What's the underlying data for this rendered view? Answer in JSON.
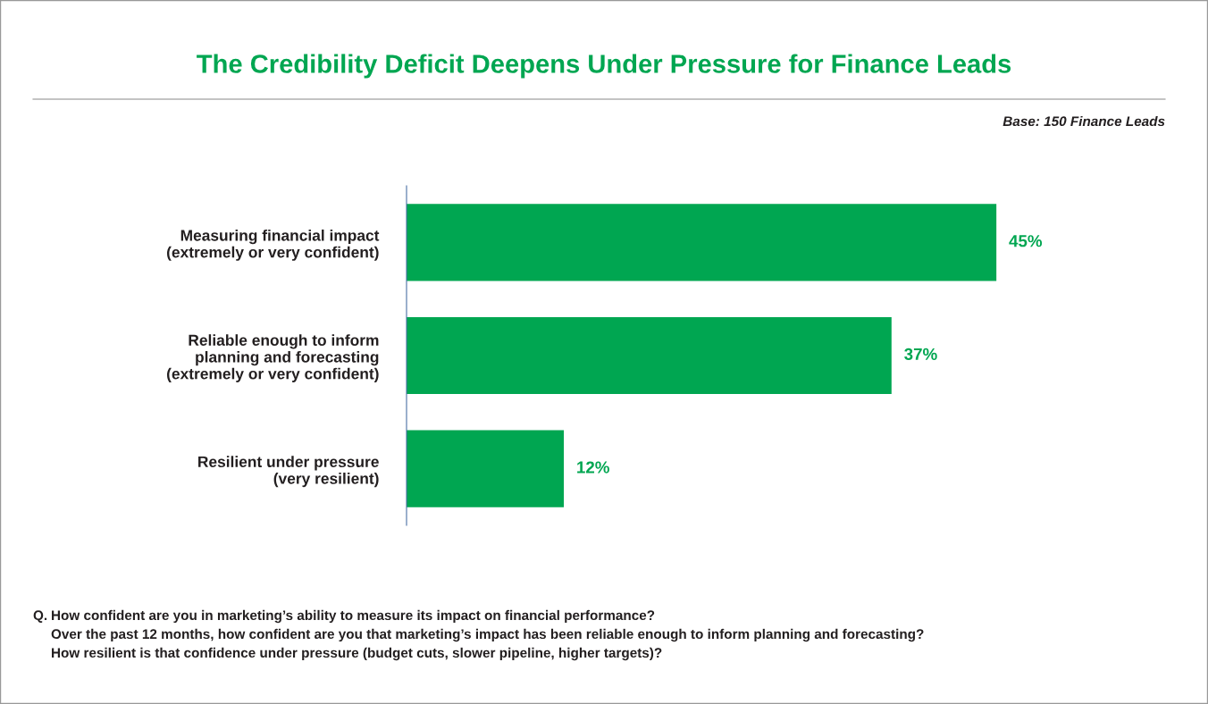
{
  "chart_data": {
    "type": "bar",
    "orientation": "horizontal",
    "title": "The Credibility Deficit Deepens Under Pressure for Finance Leads",
    "categories": [
      "Measuring financial impact\n(extremely or very confident)",
      "Reliable enough to inform\nplanning and forecasting\n(extremely or very confident)",
      "Resilient under pressure\n(very resilient)"
    ],
    "values": [
      45,
      37,
      12
    ],
    "value_labels": [
      "45%",
      "37%",
      "12%"
    ],
    "color": "#00a651",
    "tick_labels": "y",
    "annotations": [
      "Base: 150 Finance Leads",
      "Q.",
      "How confident are you in marketing’s ability to measure its impact on financial performance?",
      "Over the past 12 months, how confident are you that marketing’s impact has been reliable enough to inform planning and forecasting?",
      "How resilient is that confidence under pressure (budget cuts, slower pipeline, higher targets)?"
    ]
  }
}
